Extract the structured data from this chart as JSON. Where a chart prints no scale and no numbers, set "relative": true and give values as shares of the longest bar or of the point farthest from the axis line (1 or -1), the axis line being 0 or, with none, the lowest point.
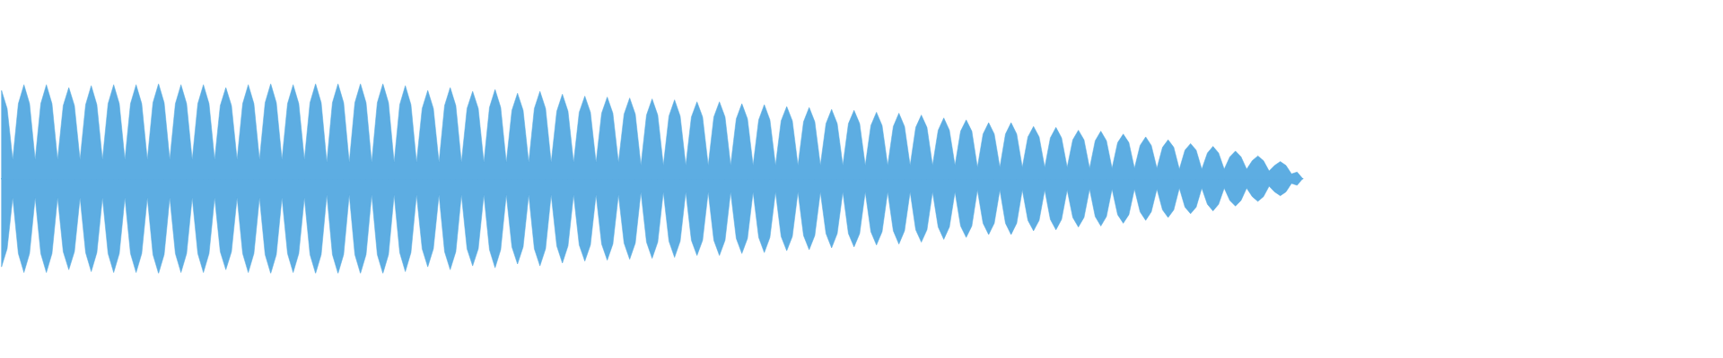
{
  "chart_data": {
    "type": "area",
    "relative": true,
    "categories": [
      null,
      null,
      null,
      null,
      null,
      null,
      null,
      null,
      null,
      null,
      null,
      null,
      null,
      null,
      null,
      null,
      null,
      null,
      null,
      null,
      null,
      null,
      null,
      null,
      null,
      null,
      null,
      null,
      null,
      null,
      null,
      null,
      null,
      null,
      null,
      null,
      null,
      null,
      null,
      null,
      null,
      null,
      null,
      null,
      null,
      null,
      null,
      null,
      null,
      null,
      null,
      null,
      null,
      null,
      null,
      null,
      null,
      null,
      null,
      null,
      null,
      null,
      null,
      null,
      null,
      null,
      null,
      null,
      null,
      null,
      null,
      null,
      null,
      null,
      null,
      null,
      null,
      null,
      null,
      null,
      null,
      null,
      null,
      null,
      null,
      null,
      null,
      null,
      null,
      null,
      null,
      null,
      null,
      null,
      null,
      null,
      null,
      null,
      null,
      null,
      null,
      null,
      null,
      null,
      null,
      null,
      null,
      null,
      null,
      null,
      null,
      null,
      null,
      null,
      null,
      null,
      null,
      null,
      null,
      null,
      null,
      null,
      null,
      null,
      null,
      null,
      null,
      null,
      null,
      null,
      null,
      null,
      null,
      null,
      null,
      null,
      null,
      null,
      null,
      null,
      null,
      null,
      null,
      null,
      null,
      null,
      null,
      null,
      null,
      null,
      null,
      null,
      null,
      null,
      null,
      null,
      null,
      null,
      null,
      null,
      null,
      null,
      null,
      null,
      null,
      null,
      null,
      null,
      null,
      null,
      null,
      null,
      null,
      null,
      null,
      null,
      null,
      null,
      null,
      null,
      null,
      null,
      null,
      null,
      null,
      null,
      null,
      null,
      null,
      null,
      null,
      null,
      null,
      null,
      null,
      null,
      null,
      null,
      null,
      null,
      null,
      null,
      null,
      null,
      null,
      null,
      null,
      null,
      null,
      null,
      null,
      null,
      null,
      null,
      null,
      null,
      null,
      null,
      null,
      null,
      null,
      null,
      null,
      null,
      null,
      null,
      null,
      null,
      null,
      null,
      null,
      null,
      null
    ],
    "series": [
      {
        "color": "#5dade2",
        "values": [
          0.93,
          0.74,
          0.2,
          0.79,
          0.99,
          0.79,
          0.2,
          0.79,
          0.99,
          0.79,
          0.2,
          0.77,
          0.96,
          0.77,
          0.2,
          0.78,
          0.98,
          0.78,
          0.2,
          0.79,
          0.99,
          0.79,
          0.2,
          0.79,
          0.99,
          0.79,
          0.2,
          0.8,
          1.0,
          0.8,
          0.2,
          0.79,
          0.99,
          0.79,
          0.2,
          0.79,
          0.99,
          0.79,
          0.2,
          0.77,
          0.96,
          0.77,
          0.2,
          0.79,
          0.99,
          0.79,
          0.2,
          0.8,
          1.0,
          0.8,
          0.2,
          0.79,
          0.99,
          0.79,
          0.2,
          0.8,
          1.0,
          0.8,
          0.17,
          0.8,
          1.0,
          0.8,
          0.17,
          0.8,
          1.0,
          0.8,
          0.17,
          0.8,
          1.0,
          0.8,
          0.17,
          0.78,
          0.98,
          0.78,
          0.17,
          0.74,
          0.93,
          0.74,
          0.17,
          0.77,
          0.96,
          0.77,
          0.17,
          0.74,
          0.92,
          0.74,
          0.17,
          0.75,
          0.94,
          0.75,
          0.17,
          0.72,
          0.9,
          0.72,
          0.17,
          0.74,
          0.92,
          0.74,
          0.17,
          0.71,
          0.89,
          0.71,
          0.17,
          0.7,
          0.87,
          0.7,
          0.17,
          0.69,
          0.86,
          0.69,
          0.17,
          0.68,
          0.85,
          0.68,
          0.14,
          0.67,
          0.84,
          0.67,
          0.14,
          0.66,
          0.83,
          0.66,
          0.14,
          0.65,
          0.81,
          0.65,
          0.14,
          0.65,
          0.81,
          0.65,
          0.14,
          0.63,
          0.79,
          0.63,
          0.14,
          0.62,
          0.78,
          0.62,
          0.14,
          0.61,
          0.76,
          0.61,
          0.14,
          0.6,
          0.75,
          0.6,
          0.14,
          0.58,
          0.73,
          0.58,
          0.14,
          0.58,
          0.72,
          0.58,
          0.14,
          0.56,
          0.7,
          0.56,
          0.14,
          0.55,
          0.69,
          0.55,
          0.14,
          0.54,
          0.67,
          0.54,
          0.14,
          0.51,
          0.64,
          0.51,
          0.14,
          0.5,
          0.62,
          0.5,
          0.12,
          0.47,
          0.59,
          0.47,
          0.12,
          0.47,
          0.59,
          0.47,
          0.12,
          0.44,
          0.55,
          0.44,
          0.12,
          0.43,
          0.54,
          0.43,
          0.12,
          0.41,
          0.51,
          0.41,
          0.11,
          0.4,
          0.5,
          0.4,
          0.11,
          0.38,
          0.47,
          0.38,
          0.11,
          0.35,
          0.44,
          0.35,
          0.11,
          0.33,
          0.41,
          0.33,
          0.1,
          0.3,
          0.37,
          0.3,
          0.1,
          0.27,
          0.34,
          0.27,
          0.1,
          0.23,
          0.29,
          0.23,
          0.1,
          0.19,
          0.24,
          0.19,
          0.08,
          0.14,
          0.18,
          0.14,
          0.05,
          0.07,
          0
        ]
      },
      {
        "color": "#5dade2",
        "values": [
          -0.93,
          -0.74,
          -0.2,
          -0.79,
          -0.99,
          -0.79,
          -0.2,
          -0.79,
          -0.99,
          -0.79,
          -0.2,
          -0.77,
          -0.96,
          -0.77,
          -0.2,
          -0.78,
          -0.98,
          -0.78,
          -0.2,
          -0.79,
          -0.99,
          -0.79,
          -0.2,
          -0.79,
          -0.99,
          -0.79,
          -0.2,
          -0.8,
          -1.0,
          -0.8,
          -0.2,
          -0.79,
          -0.99,
          -0.79,
          -0.2,
          -0.79,
          -0.99,
          -0.79,
          -0.2,
          -0.77,
          -0.96,
          -0.77,
          -0.2,
          -0.79,
          -0.99,
          -0.79,
          -0.2,
          -0.8,
          -1.0,
          -0.8,
          -0.2,
          -0.79,
          -0.99,
          -0.79,
          -0.2,
          -0.8,
          -1.0,
          -0.8,
          -0.17,
          -0.8,
          -1.0,
          -0.8,
          -0.17,
          -0.8,
          -1.0,
          -0.8,
          -0.17,
          -0.8,
          -1.0,
          -0.8,
          -0.17,
          -0.78,
          -0.98,
          -0.78,
          -0.17,
          -0.74,
          -0.93,
          -0.74,
          -0.17,
          -0.77,
          -0.96,
          -0.77,
          -0.17,
          -0.74,
          -0.92,
          -0.74,
          -0.17,
          -0.75,
          -0.94,
          -0.75,
          -0.17,
          -0.72,
          -0.9,
          -0.72,
          -0.17,
          -0.74,
          -0.92,
          -0.74,
          -0.17,
          -0.71,
          -0.89,
          -0.71,
          -0.17,
          -0.7,
          -0.87,
          -0.7,
          -0.17,
          -0.69,
          -0.86,
          -0.69,
          -0.17,
          -0.68,
          -0.85,
          -0.68,
          -0.14,
          -0.67,
          -0.84,
          -0.67,
          -0.14,
          -0.66,
          -0.83,
          -0.66,
          -0.14,
          -0.65,
          -0.81,
          -0.65,
          -0.14,
          -0.65,
          -0.81,
          -0.65,
          -0.14,
          -0.63,
          -0.79,
          -0.63,
          -0.14,
          -0.62,
          -0.78,
          -0.62,
          -0.14,
          -0.61,
          -0.76,
          -0.61,
          -0.14,
          -0.6,
          -0.75,
          -0.6,
          -0.14,
          -0.58,
          -0.73,
          -0.58,
          -0.14,
          -0.58,
          -0.72,
          -0.58,
          -0.14,
          -0.56,
          -0.7,
          -0.56,
          -0.14,
          -0.55,
          -0.69,
          -0.55,
          -0.14,
          -0.54,
          -0.67,
          -0.54,
          -0.14,
          -0.51,
          -0.64,
          -0.51,
          -0.14,
          -0.5,
          -0.62,
          -0.5,
          -0.12,
          -0.47,
          -0.59,
          -0.47,
          -0.12,
          -0.47,
          -0.59,
          -0.47,
          -0.12,
          -0.44,
          -0.55,
          -0.44,
          -0.12,
          -0.43,
          -0.54,
          -0.43,
          -0.12,
          -0.41,
          -0.51,
          -0.41,
          -0.11,
          -0.4,
          -0.5,
          -0.4,
          -0.11,
          -0.38,
          -0.47,
          -0.38,
          -0.11,
          -0.35,
          -0.44,
          -0.35,
          -0.11,
          -0.33,
          -0.41,
          -0.33,
          -0.1,
          -0.3,
          -0.37,
          -0.3,
          -0.1,
          -0.27,
          -0.34,
          -0.27,
          -0.1,
          -0.23,
          -0.29,
          -0.23,
          -0.1,
          -0.19,
          -0.24,
          -0.19,
          -0.08,
          -0.14,
          -0.18,
          -0.14,
          -0.05,
          -0.07,
          0
        ]
      }
    ],
    "ref_lines": [
      {
        "axis": "y",
        "value": 0,
        "color": "#5dade2"
      }
    ]
  }
}
